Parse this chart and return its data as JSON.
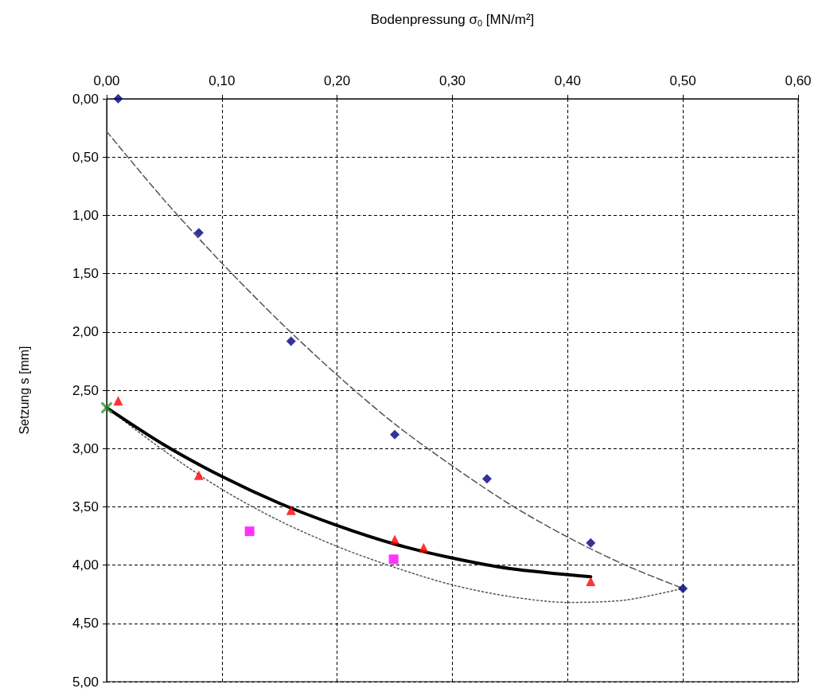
{
  "chart_data": {
    "type": "scatter",
    "xlabel": "Bodenpressung σ$_{0}$ [MN/m²]",
    "ylabel": "Setzung s [mm]",
    "xlim": [
      0,
      0.6
    ],
    "xticks": [
      {
        "value": 0,
        "label": "0,00"
      },
      {
        "value": 0.1,
        "label": "0,10"
      },
      {
        "value": 0.2,
        "label": "0,20"
      },
      {
        "value": 0.3,
        "label": "0,30"
      },
      {
        "value": 0.4,
        "label": "0,40"
      },
      {
        "value": 0.5,
        "label": "0,50"
      },
      {
        "value": 0.6,
        "label": "0,60"
      }
    ],
    "ylim": [
      5,
      0
    ],
    "yticks": [
      {
        "value": 0,
        "label": "0,00"
      },
      {
        "value": 0.5,
        "label": "0,50"
      },
      {
        "value": 1,
        "label": "1,00"
      },
      {
        "value": 1.5,
        "label": "1,50"
      },
      {
        "value": 2,
        "label": "2,00"
      },
      {
        "value": 2.5,
        "label": "2,50"
      },
      {
        "value": 3,
        "label": "3,00"
      },
      {
        "value": 3.5,
        "label": "3,50"
      },
      {
        "value": 4,
        "label": "4,00"
      },
      {
        "value": 4.5,
        "label": "4,50"
      },
      {
        "value": 5,
        "label": "5,00"
      }
    ],
    "grid": true,
    "series": [
      {
        "type": "line",
        "marker": "none",
        "line_style": "dashed",
        "color": "#555555",
        "x": [
          0,
          0.05,
          0.1,
          0.15,
          0.2,
          0.25,
          0.3,
          0.35,
          0.4,
          0.45,
          0.5
        ],
        "values": [
          0.28,
          0.87,
          1.41,
          1.91,
          2.37,
          2.79,
          3.15,
          3.48,
          3.76,
          4.0,
          4.2
        ]
      },
      {
        "type": "line",
        "marker": "none",
        "line_style": "dotted",
        "color": "#555555",
        "x": [
          0,
          0.05,
          0.1,
          0.15,
          0.2,
          0.25,
          0.3,
          0.35,
          0.4,
          0.45,
          0.5
        ],
        "values": [
          2.65,
          3.02,
          3.35,
          3.62,
          3.84,
          4.02,
          4.17,
          4.27,
          4.32,
          4.3,
          4.2
        ]
      },
      {
        "type": "line",
        "marker": "none",
        "line_style": "solid",
        "color": "#000000",
        "x": [
          0,
          0.05,
          0.1,
          0.15,
          0.2,
          0.25,
          0.3,
          0.35,
          0.42
        ],
        "values": [
          2.65,
          2.97,
          3.24,
          3.47,
          3.66,
          3.82,
          3.94,
          4.03,
          4.1
        ]
      },
      {
        "marker": "diamond",
        "color": "#000080",
        "x": [
          0.01,
          0.08,
          0.16,
          0.25,
          0.33,
          0.42,
          0.5
        ],
        "values": [
          0,
          1.15,
          2.08,
          2.88,
          3.26,
          3.81,
          4.2
        ]
      },
      {
        "marker": "triangle",
        "color": "#ff0000",
        "x": [
          0.01,
          0.08,
          0.16,
          0.25,
          0.275,
          0.42
        ],
        "values": [
          2.59,
          3.23,
          3.53,
          3.78,
          3.85,
          4.14
        ]
      },
      {
        "marker": "square",
        "color": "#ff00ff",
        "x": [
          0.124,
          0.249
        ],
        "values": [
          3.71,
          3.95
        ]
      },
      {
        "marker": "cross",
        "color": "#339933",
        "x": [
          0
        ],
        "values": [
          2.65
        ]
      }
    ]
  }
}
